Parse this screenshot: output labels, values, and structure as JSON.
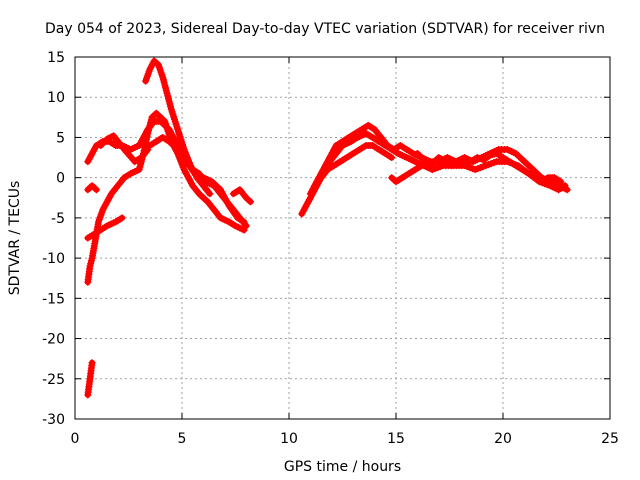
{
  "chart_data": {
    "type": "scatter",
    "title": "Day 054 of 2023, Sidereal Day-to-day VTEC variation (SDTVAR) for receiver rivn",
    "xlabel": "GPS time / hours",
    "ylabel": "SDTVAR / TECUs",
    "xlim": [
      0,
      25
    ],
    "ylim": [
      -30,
      15
    ],
    "xticks": [
      0,
      5,
      10,
      15,
      20,
      25
    ],
    "yticks": [
      -30,
      -25,
      -20,
      -15,
      -10,
      -5,
      0,
      5,
      10,
      15
    ],
    "grid": true,
    "marker": "+",
    "color": "#ff0000",
    "series": [
      {
        "name": "trace-a",
        "points": [
          [
            0.6,
            -27
          ],
          [
            0.65,
            -26
          ],
          [
            0.7,
            -25
          ],
          [
            0.75,
            -24
          ],
          [
            0.8,
            -23
          ]
        ]
      },
      {
        "name": "trace-b",
        "points": [
          [
            0.6,
            -13
          ],
          [
            0.65,
            -12
          ],
          [
            0.7,
            -11
          ],
          [
            0.8,
            -10
          ],
          [
            0.9,
            -8.5
          ],
          [
            1.0,
            -7
          ],
          [
            1.1,
            -5.5
          ],
          [
            1.3,
            -4
          ],
          [
            1.5,
            -3
          ],
          [
            1.7,
            -2
          ],
          [
            2.0,
            -1
          ],
          [
            2.3,
            0
          ],
          [
            2.6,
            0.5
          ],
          [
            3.0,
            1
          ],
          [
            3.2,
            3
          ],
          [
            3.4,
            5.5
          ],
          [
            3.6,
            7.5
          ],
          [
            3.8,
            8
          ],
          [
            4.0,
            7.5
          ],
          [
            4.2,
            7
          ],
          [
            4.5,
            4.5
          ],
          [
            4.8,
            3
          ],
          [
            5.1,
            1
          ],
          [
            5.5,
            -1
          ],
          [
            5.8,
            -2
          ],
          [
            6.2,
            -3
          ],
          [
            6.5,
            -4
          ],
          [
            6.8,
            -5
          ],
          [
            7.2,
            -5.5
          ],
          [
            7.5,
            -6
          ],
          [
            7.9,
            -6.5
          ]
        ]
      },
      {
        "name": "trace-c",
        "points": [
          [
            0.6,
            2
          ],
          [
            0.8,
            3
          ],
          [
            1.0,
            4
          ],
          [
            1.3,
            4.5
          ],
          [
            1.6,
            4.5
          ],
          [
            1.9,
            4
          ],
          [
            2.2,
            4
          ],
          [
            2.6,
            3.5
          ],
          [
            3.0,
            4
          ],
          [
            3.4,
            6
          ],
          [
            3.7,
            7
          ],
          [
            4.0,
            7
          ],
          [
            4.4,
            6
          ],
          [
            4.8,
            4
          ],
          [
            5.1,
            2.5
          ],
          [
            5.5,
            1
          ],
          [
            5.8,
            0.5
          ],
          [
            6.1,
            -0.5
          ],
          [
            6.5,
            -1
          ],
          [
            6.8,
            -2
          ],
          [
            7.1,
            -3
          ],
          [
            7.4,
            -4
          ],
          [
            7.7,
            -5
          ],
          [
            8.0,
            -6
          ]
        ]
      },
      {
        "name": "trace-d",
        "points": [
          [
            1.2,
            4
          ],
          [
            1.5,
            4.8
          ],
          [
            1.8,
            5.2
          ],
          [
            2.1,
            4.2
          ],
          [
            2.4,
            3.2
          ],
          [
            2.8,
            2
          ],
          [
            3.1,
            2.5
          ],
          [
            3.4,
            3.5
          ]
        ]
      },
      {
        "name": "trace-e",
        "points": [
          [
            3.3,
            12
          ],
          [
            3.5,
            13.5
          ],
          [
            3.7,
            14.5
          ],
          [
            3.9,
            14
          ],
          [
            4.1,
            12.5
          ],
          [
            4.3,
            10.5
          ],
          [
            4.5,
            8.5
          ],
          [
            4.8,
            6
          ],
          [
            5.1,
            3.5
          ],
          [
            5.4,
            1.5
          ],
          [
            5.7,
            0
          ],
          [
            6.0,
            -1
          ],
          [
            6.3,
            -2
          ]
        ]
      },
      {
        "name": "trace-f",
        "points": [
          [
            3.5,
            4
          ],
          [
            3.8,
            4.5
          ],
          [
            4.1,
            5
          ],
          [
            4.4,
            4.5
          ],
          [
            4.8,
            3.5
          ],
          [
            5.2,
            2
          ],
          [
            5.6,
            0.5
          ],
          [
            6.0,
            0
          ],
          [
            6.4,
            -0.5
          ],
          [
            6.8,
            -1.5
          ],
          [
            7.2,
            -3.5
          ],
          [
            7.6,
            -5
          ],
          [
            7.9,
            -5.5
          ]
        ]
      },
      {
        "name": "trace-g",
        "points": [
          [
            0.6,
            -1.5
          ],
          [
            0.8,
            -1
          ],
          [
            1.0,
            -1.5
          ]
        ]
      },
      {
        "name": "trace-h",
        "points": [
          [
            0.6,
            -7.5
          ],
          [
            0.9,
            -7
          ],
          [
            1.2,
            -6.5
          ],
          [
            1.5,
            -6
          ],
          [
            1.9,
            -5.5
          ],
          [
            2.2,
            -5
          ]
        ]
      },
      {
        "name": "trace-i",
        "points": [
          [
            7.4,
            -2
          ],
          [
            7.7,
            -1.5
          ],
          [
            8.0,
            -2.5
          ],
          [
            8.2,
            -3
          ]
        ]
      },
      {
        "name": "trace-j",
        "points": [
          [
            10.6,
            -4.5
          ],
          [
            10.8,
            -3.5
          ],
          [
            11.0,
            -2.5
          ],
          [
            11.3,
            -1
          ],
          [
            11.6,
            0.5
          ],
          [
            11.9,
            2
          ],
          [
            12.2,
            3
          ],
          [
            12.5,
            4
          ],
          [
            12.9,
            4.5
          ],
          [
            13.2,
            5
          ],
          [
            13.6,
            5.5
          ],
          [
            13.9,
            5
          ],
          [
            14.2,
            4.5
          ],
          [
            14.5,
            4
          ],
          [
            14.8,
            3.5
          ],
          [
            15.1,
            3
          ],
          [
            15.5,
            2.5
          ],
          [
            15.9,
            2
          ],
          [
            16.3,
            1.5
          ],
          [
            16.7,
            1
          ],
          [
            17.2,
            1.5
          ],
          [
            17.7,
            1.5
          ],
          [
            18.2,
            1.5
          ],
          [
            18.7,
            1
          ],
          [
            19.2,
            1.5
          ],
          [
            19.7,
            2
          ],
          [
            20.2,
            2
          ],
          [
            20.7,
            1.5
          ],
          [
            21.2,
            0.5
          ],
          [
            21.7,
            -0.5
          ],
          [
            22.2,
            -1
          ],
          [
            22.6,
            -1.5
          ],
          [
            22.9,
            -1
          ]
        ]
      },
      {
        "name": "trace-k",
        "points": [
          [
            11.0,
            -2
          ],
          [
            11.3,
            -0.5
          ],
          [
            11.6,
            1
          ],
          [
            11.9,
            2.5
          ],
          [
            12.2,
            4
          ],
          [
            12.5,
            4.5
          ],
          [
            12.8,
            5
          ],
          [
            13.1,
            5.5
          ],
          [
            13.4,
            6
          ],
          [
            13.7,
            6.5
          ],
          [
            14.0,
            6
          ],
          [
            14.3,
            5
          ],
          [
            14.6,
            4
          ],
          [
            14.9,
            3.5
          ],
          [
            15.2,
            4
          ],
          [
            15.5,
            3.5
          ],
          [
            15.8,
            3
          ],
          [
            16.2,
            2.5
          ],
          [
            16.6,
            2
          ],
          [
            17.0,
            2
          ],
          [
            17.4,
            2.5
          ],
          [
            17.8,
            2
          ],
          [
            18.2,
            2.5
          ],
          [
            18.6,
            2
          ],
          [
            19.0,
            2.5
          ],
          [
            19.4,
            3
          ],
          [
            19.8,
            3.5
          ],
          [
            20.2,
            3.5
          ],
          [
            20.6,
            3
          ],
          [
            21.0,
            2
          ],
          [
            21.4,
            1
          ],
          [
            21.8,
            0
          ],
          [
            22.2,
            -0.5
          ],
          [
            22.6,
            -1
          ],
          [
            23.0,
            -1.5
          ]
        ]
      },
      {
        "name": "trace-l",
        "points": [
          [
            11.2,
            -1
          ],
          [
            11.5,
            0
          ],
          [
            11.8,
            1
          ],
          [
            12.1,
            1.5
          ],
          [
            12.4,
            2
          ],
          [
            12.7,
            2.5
          ],
          [
            13.0,
            3
          ],
          [
            13.3,
            3.5
          ],
          [
            13.6,
            4
          ],
          [
            13.9,
            4
          ],
          [
            14.2,
            3.5
          ],
          [
            14.5,
            3
          ],
          [
            14.8,
            2.5
          ]
        ]
      },
      {
        "name": "trace-m",
        "points": [
          [
            14.8,
            0
          ],
          [
            15.0,
            -0.5
          ],
          [
            15.3,
            0
          ],
          [
            15.6,
            0.5
          ],
          [
            15.9,
            1
          ],
          [
            16.2,
            1.5
          ]
        ]
      },
      {
        "name": "trace-n",
        "points": [
          [
            16.0,
            3
          ],
          [
            16.2,
            2.5
          ],
          [
            16.4,
            2
          ],
          [
            16.6,
            1.5
          ],
          [
            16.8,
            2
          ],
          [
            17.0,
            2.5
          ],
          [
            17.3,
            2
          ],
          [
            17.6,
            1.5
          ],
          [
            17.9,
            2
          ],
          [
            18.2,
            1.8
          ],
          [
            18.5,
            2
          ],
          [
            18.8,
            2.5
          ],
          [
            19.1,
            2.2
          ],
          [
            19.4,
            2.8
          ],
          [
            19.7,
            3
          ],
          [
            20.0,
            2.5
          ],
          [
            20.3,
            2
          ],
          [
            20.6,
            1.5
          ],
          [
            20.9,
            1
          ],
          [
            21.2,
            0.5
          ],
          [
            21.5,
            0
          ],
          [
            21.8,
            -0.5
          ],
          [
            22.1,
            0
          ],
          [
            22.4,
            0
          ],
          [
            22.7,
            -0.5
          ]
        ]
      }
    ]
  }
}
